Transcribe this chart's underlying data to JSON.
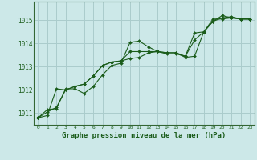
{
  "background_color": "#cce8e8",
  "grid_color": "#aacccc",
  "line_color": "#1a5c1a",
  "marker_color": "#1a5c1a",
  "title": "Graphe pression niveau de la mer (hPa)",
  "xlim": [
    -0.5,
    23.5
  ],
  "ylim": [
    1010.5,
    1015.8
  ],
  "yticks": [
    1011,
    1012,
    1013,
    1014,
    1015
  ],
  "xticks": [
    0,
    1,
    2,
    3,
    4,
    5,
    6,
    7,
    8,
    9,
    10,
    11,
    12,
    13,
    14,
    15,
    16,
    17,
    18,
    19,
    20,
    21,
    22,
    23
  ],
  "series1": [
    1010.8,
    1011.15,
    1011.2,
    1012.05,
    1012.05,
    1011.85,
    1012.15,
    1012.65,
    1013.05,
    1013.15,
    1014.05,
    1014.1,
    1013.85,
    1013.65,
    1013.6,
    1013.6,
    1013.45,
    1014.45,
    1014.5,
    1014.95,
    1015.1,
    1015.15,
    1015.05,
    1015.05
  ],
  "series2": [
    1010.8,
    1010.9,
    1012.05,
    1012.0,
    1012.15,
    1012.25,
    1012.6,
    1013.05,
    1013.2,
    1013.25,
    1013.65,
    1013.65,
    1013.65,
    1013.65,
    1013.55,
    1013.55,
    1013.45,
    1014.15,
    1014.5,
    1015.05,
    1015.05,
    1015.1,
    1015.05,
    1015.05
  ],
  "series3": [
    1010.8,
    1011.05,
    1011.25,
    1012.0,
    1012.15,
    1012.25,
    1012.6,
    1013.05,
    1013.2,
    1013.25,
    1013.35,
    1013.4,
    1013.6,
    1013.65,
    1013.6,
    1013.6,
    1013.4,
    1013.45,
    1014.5,
    1014.95,
    1015.2,
    1015.1,
    1015.05,
    1015.05
  ]
}
